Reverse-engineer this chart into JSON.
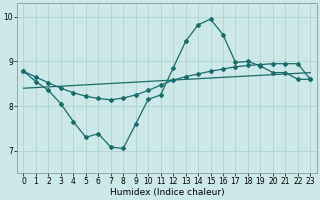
{
  "xlabel": "Humidex (Indice chaleur)",
  "xlim": [
    -0.5,
    23.5
  ],
  "ylim": [
    6.5,
    10.3
  ],
  "yticks": [
    7,
    8,
    9,
    10
  ],
  "xticks": [
    0,
    1,
    2,
    3,
    4,
    5,
    6,
    7,
    8,
    9,
    10,
    11,
    12,
    13,
    14,
    15,
    16,
    17,
    18,
    19,
    20,
    21,
    22,
    23
  ],
  "background_color": "#cce8e8",
  "grid_color": "#aacece",
  "line_color": "#1a6b6b",
  "line1_x": [
    0,
    1,
    2,
    3,
    4,
    5,
    6,
    7,
    8,
    9,
    10,
    11,
    12,
    13,
    14,
    15,
    16,
    17,
    18,
    19,
    20,
    21,
    22,
    23
  ],
  "line1_y": [
    8.78,
    8.55,
    8.35,
    8.05,
    7.65,
    7.3,
    7.38,
    7.08,
    7.05,
    7.6,
    8.15,
    8.25,
    8.85,
    9.45,
    9.82,
    9.95,
    9.6,
    8.98,
    9.0,
    8.9,
    8.75,
    8.75,
    8.6,
    8.6
  ],
  "line2_x": [
    0,
    1,
    2,
    3,
    4,
    5,
    6,
    7,
    8,
    9,
    10,
    11,
    12,
    13,
    14,
    15,
    16,
    17,
    18,
    19,
    20,
    21,
    22,
    23
  ],
  "line2_y": [
    8.78,
    8.65,
    8.52,
    8.4,
    8.3,
    8.22,
    8.17,
    8.14,
    8.18,
    8.25,
    8.35,
    8.47,
    8.58,
    8.66,
    8.72,
    8.78,
    8.83,
    8.88,
    8.91,
    8.93,
    8.95,
    8.95,
    8.95,
    8.6
  ],
  "line3_x": [
    0,
    23
  ],
  "line3_y": [
    8.4,
    8.75
  ]
}
